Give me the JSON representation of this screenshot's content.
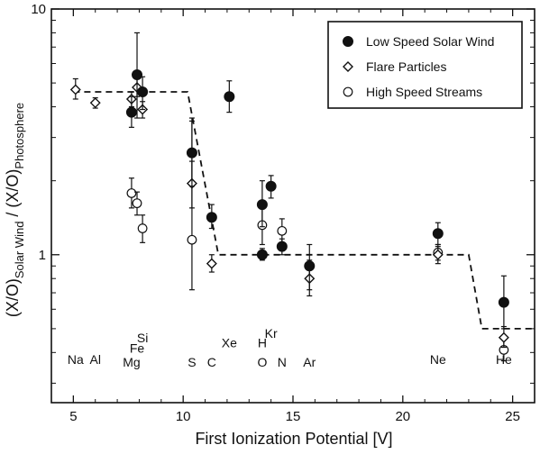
{
  "chart_data": {
    "type": "scatter",
    "xlabel": "First Ionization Potential [V]",
    "ylabel_main": "(X/O)",
    "ylabel_sub1": "Solar Wind",
    "ylabel_mid": " / (X/O)",
    "ylabel_sub2": "Photosphere",
    "xlim": [
      4,
      26
    ],
    "ylim": [
      0.25,
      10
    ],
    "y_scale": "log",
    "x_ticks": [
      5,
      10,
      15,
      20,
      25
    ],
    "y_ticks": [
      1,
      10
    ],
    "legend_position": "top-right",
    "series": [
      {
        "name": "Low Speed Solar Wind",
        "marker": "filled-circle",
        "points": [
          {
            "x": 7.65,
            "y": 3.8,
            "lo": 3.3,
            "hi": 4.4
          },
          {
            "x": 7.9,
            "y": 5.4,
            "lo": 3.6,
            "hi": 8.0
          },
          {
            "x": 8.15,
            "y": 4.6,
            "lo": 3.9,
            "hi": 5.3
          },
          {
            "x": 10.4,
            "y": 2.6,
            "lo": 1.9,
            "hi": 3.6
          },
          {
            "x": 11.3,
            "y": 1.42,
            "lo": 1.28,
            "hi": 1.6
          },
          {
            "x": 12.1,
            "y": 4.4,
            "lo": 3.8,
            "hi": 5.1
          },
          {
            "x": 13.6,
            "y": 1.6,
            "lo": 1.3,
            "hi": 2.0
          },
          {
            "x": 13.6,
            "y": 1.0,
            "lo": 0.95,
            "hi": 1.06
          },
          {
            "x": 14.0,
            "y": 1.9,
            "lo": 1.7,
            "hi": 2.1
          },
          {
            "x": 14.5,
            "y": 1.08,
            "lo": 1.0,
            "hi": 1.16
          },
          {
            "x": 15.75,
            "y": 0.9,
            "lo": 0.72,
            "hi": 1.1
          },
          {
            "x": 21.6,
            "y": 1.22,
            "lo": 1.1,
            "hi": 1.35
          },
          {
            "x": 24.6,
            "y": 0.64,
            "lo": 0.5,
            "hi": 0.82
          }
        ]
      },
      {
        "name": "Flare Particles",
        "marker": "open-diamond",
        "points": [
          {
            "x": 5.1,
            "y": 4.7,
            "lo": 4.3,
            "hi": 5.2
          },
          {
            "x": 6.0,
            "y": 4.15,
            "lo": 3.95,
            "hi": 4.35
          },
          {
            "x": 7.65,
            "y": 4.3,
            "lo": 4.0,
            "hi": 4.6
          },
          {
            "x": 7.9,
            "y": 4.8,
            "lo": 4.4,
            "hi": 5.2
          },
          {
            "x": 8.15,
            "y": 3.9,
            "lo": 3.6,
            "hi": 4.2
          },
          {
            "x": 10.4,
            "y": 1.95,
            "lo": 1.55,
            "hi": 2.4
          },
          {
            "x": 11.3,
            "y": 0.92,
            "lo": 0.85,
            "hi": 1.0
          },
          {
            "x": 15.75,
            "y": 0.8,
            "lo": 0.68,
            "hi": 0.95
          },
          {
            "x": 21.6,
            "y": 1.0,
            "lo": 0.92,
            "hi": 1.08
          },
          {
            "x": 24.6,
            "y": 0.46,
            "lo": 0.42,
            "hi": 0.51
          }
        ]
      },
      {
        "name": "High Speed Streams",
        "marker": "open-circle",
        "points": [
          {
            "x": 7.65,
            "y": 1.78,
            "lo": 1.55,
            "hi": 2.05
          },
          {
            "x": 7.9,
            "y": 1.62,
            "lo": 1.45,
            "hi": 1.8
          },
          {
            "x": 8.15,
            "y": 1.28,
            "lo": 1.12,
            "hi": 1.45
          },
          {
            "x": 10.4,
            "y": 1.15,
            "lo": 0.72,
            "hi": 3.5
          },
          {
            "x": 13.6,
            "y": 1.32,
            "lo": 1.1,
            "hi": 1.58
          },
          {
            "x": 14.5,
            "y": 1.25,
            "lo": 1.12,
            "hi": 1.4
          },
          {
            "x": 21.6,
            "y": 1.02,
            "lo": 0.95,
            "hi": 1.1
          },
          {
            "x": 24.6,
            "y": 0.41,
            "lo": 0.37,
            "hi": 0.46
          }
        ]
      }
    ],
    "model_step_line": [
      {
        "x": 5.0,
        "y": 4.6
      },
      {
        "x": 10.2,
        "y": 4.6
      },
      {
        "x": 11.6,
        "y": 1.0
      },
      {
        "x": 23.0,
        "y": 1.0
      },
      {
        "x": 23.6,
        "y": 0.5
      },
      {
        "x": 26.0,
        "y": 0.5
      }
    ],
    "element_labels": [
      {
        "text": "Na",
        "x": 5.1,
        "y": 0.36
      },
      {
        "text": "Al",
        "x": 6.0,
        "y": 0.36
      },
      {
        "text": "Si",
        "x": 8.15,
        "y": 0.44
      },
      {
        "text": "Fe",
        "x": 7.9,
        "y": 0.4
      },
      {
        "text": "Mg",
        "x": 7.65,
        "y": 0.35
      },
      {
        "text": "S",
        "x": 10.4,
        "y": 0.35
      },
      {
        "text": "C",
        "x": 11.3,
        "y": 0.35
      },
      {
        "text": "Xe",
        "x": 12.1,
        "y": 0.42
      },
      {
        "text": "Kr",
        "x": 14.0,
        "y": 0.46
      },
      {
        "text": "H",
        "x": 13.6,
        "y": 0.42
      },
      {
        "text": "O",
        "x": 13.6,
        "y": 0.35
      },
      {
        "text": "N",
        "x": 14.5,
        "y": 0.35
      },
      {
        "text": "Ar",
        "x": 15.75,
        "y": 0.35
      },
      {
        "text": "Ne",
        "x": 21.6,
        "y": 0.36
      },
      {
        "text": "He",
        "x": 24.6,
        "y": 0.36
      }
    ],
    "colors": {
      "foreground": "#111111",
      "background": "#ffffff"
    }
  }
}
